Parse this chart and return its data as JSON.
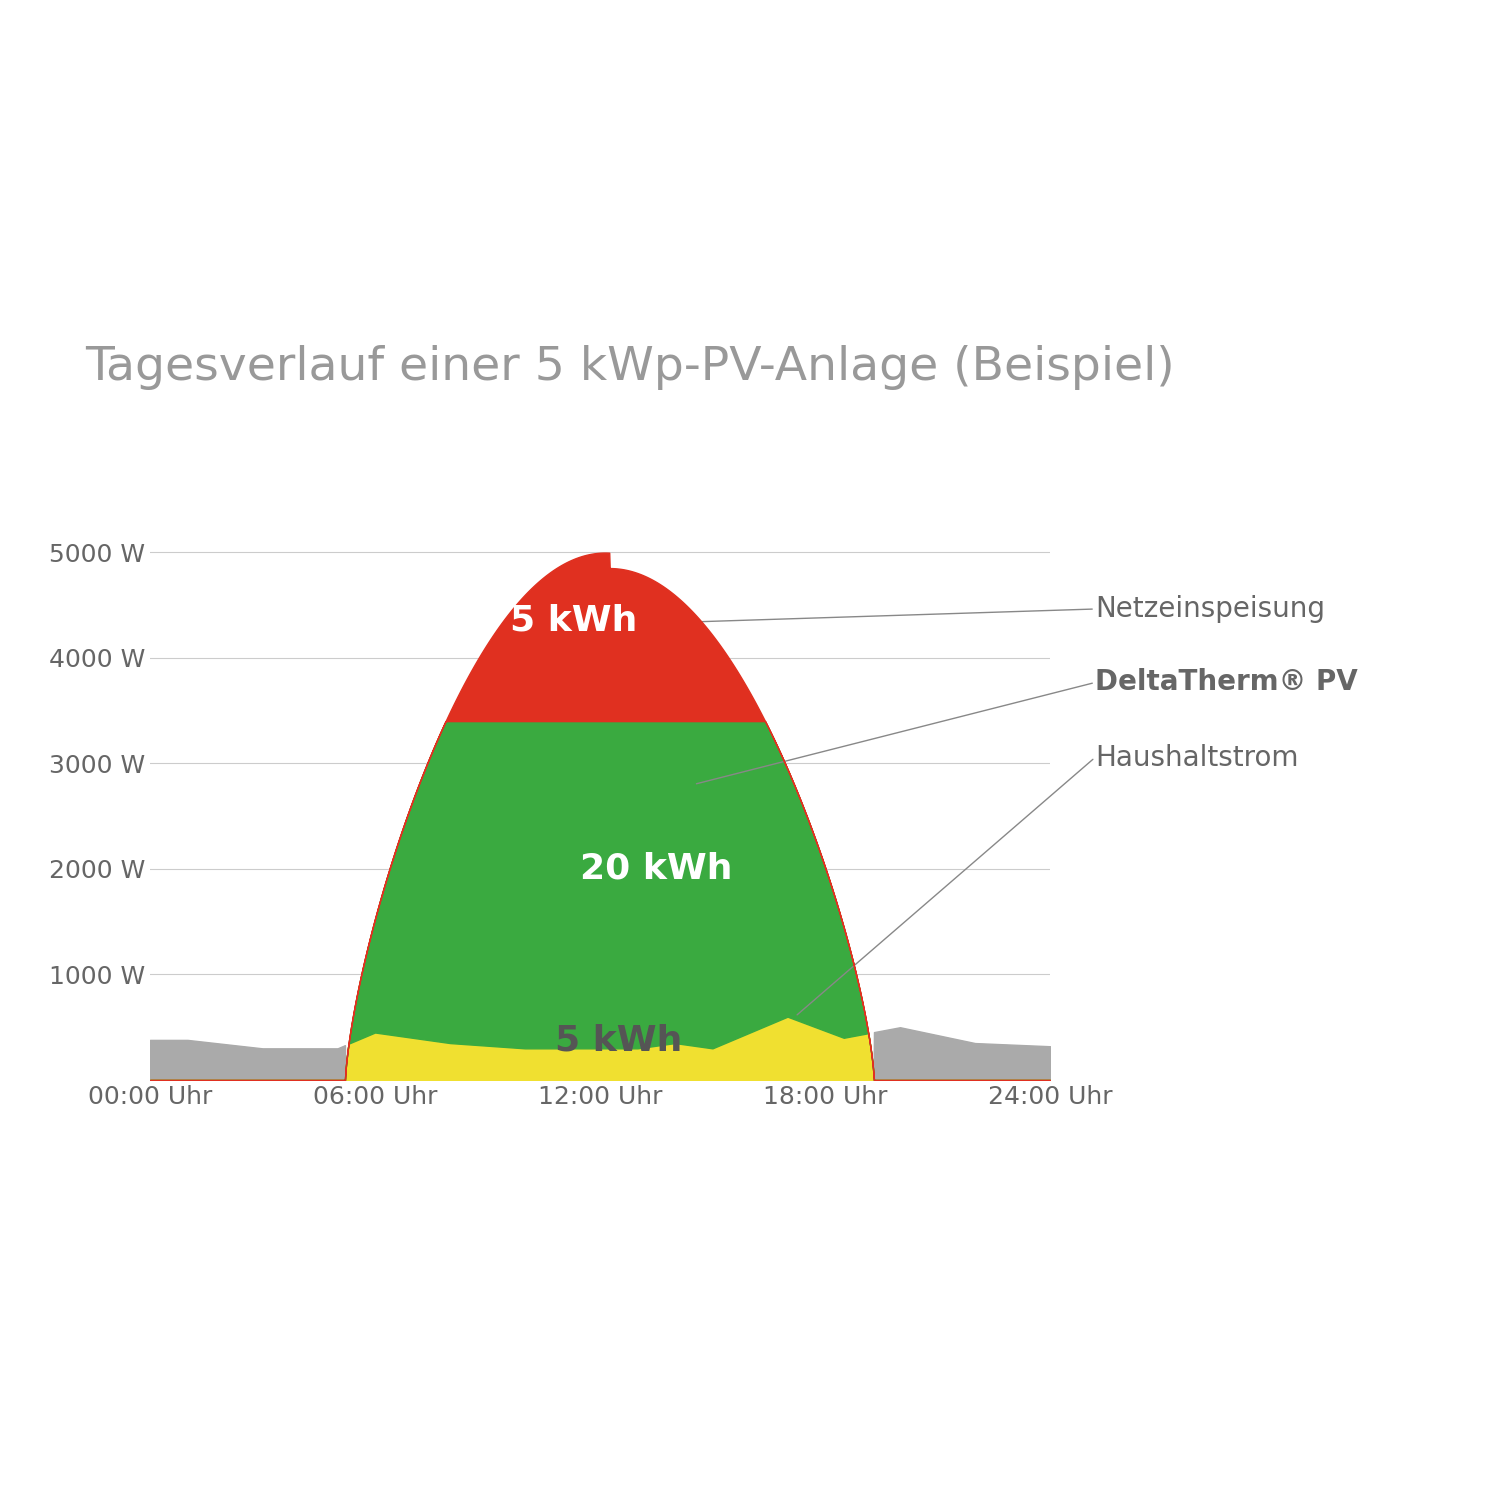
{
  "title": "Tagesverlauf einer 5 kWp-PV-Anlage (Beispiel)",
  "title_color": "#999999",
  "title_fontsize": 34,
  "background_color": "#ffffff",
  "x_ticks": [
    0,
    6,
    12,
    18,
    24
  ],
  "x_tick_labels": [
    "00:00 Uhr",
    "06:00 Uhr",
    "12:00 Uhr",
    "18:00 Uhr",
    "24:00 Uhr"
  ],
  "y_ticks": [
    1000,
    2000,
    3000,
    4000,
    5000
  ],
  "y_tick_labels": [
    "1000 W",
    "2000 W",
    "3000 W",
    "4000 W",
    "5000 W"
  ],
  "ylim": [
    0,
    5400
  ],
  "xlim": [
    0,
    24
  ],
  "grid_color": "#cccccc",
  "color_gray": "#aaaaaa",
  "color_yellow": "#f0e030",
  "color_green": "#3aaa40",
  "color_red": "#e03020",
  "label_netz": "Netzeinspeisung",
  "label_delta": "DeltaTherm® PV",
  "label_haus": "Haushaltstrom",
  "annotation_color": "#666666",
  "text_color_white": "#ffffff",
  "text_color_dark": "#555555",
  "label_fontsize": 20,
  "inner_label_fontsize": 26,
  "deltaTherm_cap": 3400,
  "pv_peak": 4850,
  "pv_start": 5.2,
  "pv_end": 19.3
}
